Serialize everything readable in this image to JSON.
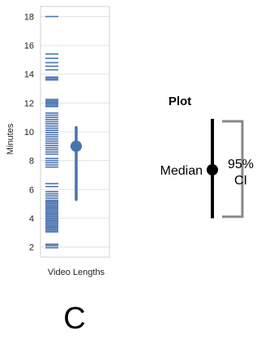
{
  "chart_data": {
    "type": "strip-with-interval",
    "ylabel": "Minutes",
    "xlabel": "Video Lengths",
    "ylim": [
      1.3,
      18.7
    ],
    "yticks": [
      2,
      4,
      6,
      8,
      10,
      12,
      14,
      16,
      18
    ],
    "grid": true,
    "rug_color": "#4a72b0",
    "rug_values": [
      1.95,
      2.1,
      2.2,
      3.05,
      3.15,
      3.25,
      3.35,
      3.45,
      3.55,
      3.65,
      3.75,
      3.85,
      3.95,
      4.05,
      4.15,
      4.25,
      4.35,
      4.45,
      4.55,
      4.65,
      4.75,
      4.85,
      4.95,
      5.05,
      5.15,
      5.25,
      5.4,
      5.55,
      5.7,
      5.85,
      6.2,
      6.4,
      7.55,
      7.7,
      7.85,
      8.0,
      8.15,
      8.45,
      8.6,
      8.75,
      8.9,
      9.05,
      9.2,
      9.35,
      9.5,
      9.65,
      9.8,
      9.95,
      10.1,
      10.25,
      10.4,
      10.55,
      10.7,
      10.85,
      11.0,
      11.15,
      11.3,
      11.75,
      11.85,
      11.95,
      12.05,
      12.15,
      12.25,
      13.6,
      13.7,
      13.8,
      14.3,
      14.55,
      14.8,
      15.1,
      15.4,
      18.0
    ],
    "median": 9.0,
    "ci": [
      5.3,
      10.3
    ]
  },
  "legend": {
    "title": "Plot",
    "median_label": "Median",
    "ci_label_line1": "95%",
    "ci_label_line2": "CI"
  },
  "panel_label": "C"
}
